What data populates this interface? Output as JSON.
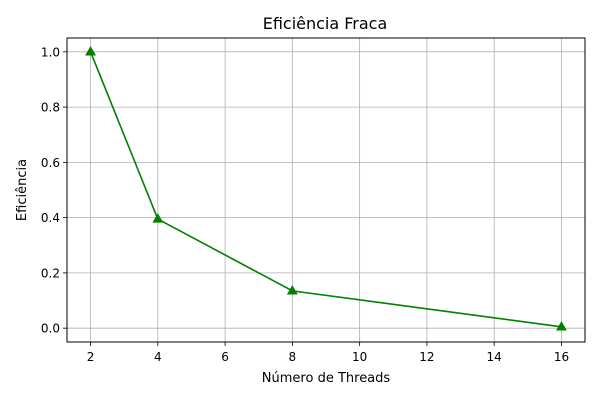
{
  "chart_data": {
    "type": "line",
    "title": "Eficiência Fraca",
    "xlabel": "Número de Threads",
    "ylabel": "Eficiência",
    "x": [
      2,
      4,
      8,
      16
    ],
    "series": [
      {
        "values": [
          1.0,
          0.395,
          0.135,
          0.005
        ],
        "color": "#008000",
        "marker": "triangle-up"
      }
    ],
    "xlim": [
      1.3,
      16.7
    ],
    "ylim": [
      -0.05,
      1.05
    ],
    "xticks": [
      2,
      4,
      6,
      8,
      10,
      12,
      14,
      16
    ],
    "yticks": [
      0.0,
      0.2,
      0.4,
      0.6,
      0.8,
      1.0
    ],
    "xtick_labels": [
      "2",
      "4",
      "6",
      "8",
      "10",
      "12",
      "14",
      "16"
    ],
    "ytick_labels": [
      "0.0",
      "0.2",
      "0.4",
      "0.6",
      "0.8",
      "1.0"
    ],
    "grid": true,
    "grid_color": "#b0b0b0",
    "legend": "none"
  }
}
